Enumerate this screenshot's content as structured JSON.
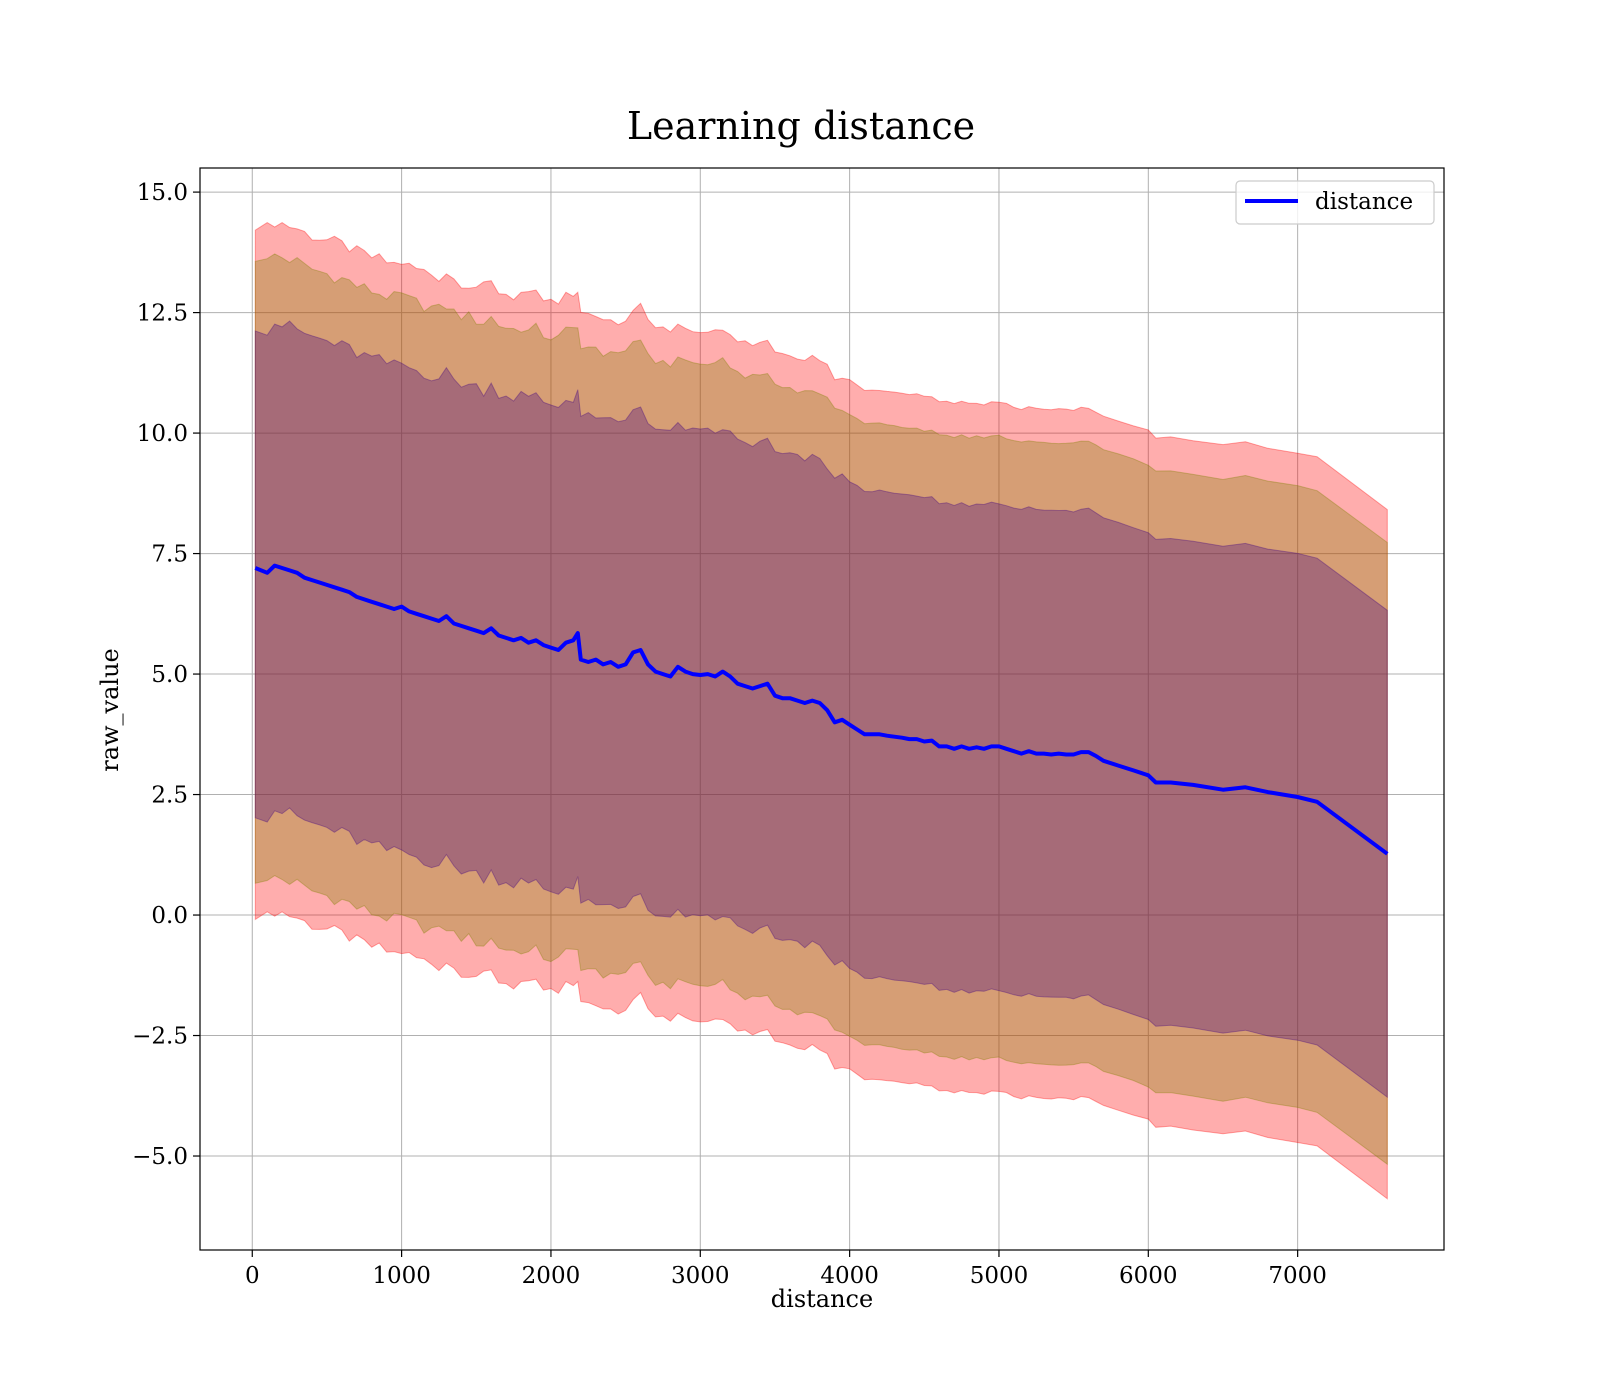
{
  "chart_data": {
    "type": "line",
    "title": "Learning distance",
    "xlabel": "distance",
    "ylabel": "raw_value",
    "xlim": [
      -350,
      7980
    ],
    "ylim": [
      -6.95,
      15.5
    ],
    "grid": true,
    "legend": {
      "placement": "top-right",
      "entries": [
        "distance"
      ]
    },
    "x_ticks": [
      "0",
      "1000",
      "2000",
      "3000",
      "4000",
      "5000",
      "6000",
      "7000"
    ],
    "x_tick_values": [
      0,
      1000,
      2000,
      3000,
      4000,
      5000,
      6000,
      7000
    ],
    "y_ticks": [
      "15.0",
      "12.5",
      "10.0",
      "7.5",
      "5.0",
      "2.5",
      "0.0",
      "−2.5",
      "−5.0"
    ],
    "y_tick_values": [
      15,
      12.5,
      10,
      7.5,
      5,
      2.5,
      0,
      -2.5,
      -5
    ],
    "series": [
      {
        "name": "distance",
        "color": "#0000ff",
        "x": [
          20,
          100,
          150,
          200,
          250,
          300,
          350,
          400,
          450,
          500,
          550,
          600,
          650,
          700,
          750,
          800,
          850,
          900,
          950,
          1000,
          1050,
          1100,
          1150,
          1200,
          1250,
          1300,
          1350,
          1400,
          1450,
          1500,
          1550,
          1600,
          1650,
          1700,
          1750,
          1800,
          1850,
          1900,
          1950,
          2000,
          2050,
          2100,
          2150,
          2180,
          2200,
          2250,
          2300,
          2350,
          2400,
          2450,
          2500,
          2550,
          2600,
          2650,
          2700,
          2750,
          2800,
          2850,
          2900,
          2950,
          3000,
          3050,
          3100,
          3150,
          3200,
          3250,
          3300,
          3350,
          3400,
          3450,
          3500,
          3550,
          3600,
          3650,
          3700,
          3750,
          3800,
          3850,
          3900,
          3950,
          4000,
          4050,
          4100,
          4150,
          4200,
          4250,
          4300,
          4350,
          4400,
          4450,
          4500,
          4550,
          4600,
          4650,
          4700,
          4750,
          4800,
          4850,
          4900,
          4950,
          5000,
          5050,
          5100,
          5150,
          5200,
          5250,
          5300,
          5350,
          5400,
          5450,
          5500,
          5550,
          5600,
          5650,
          5700,
          5800,
          5900,
          6000,
          6050,
          6150,
          6300,
          6500,
          6650,
          6800,
          7000,
          7130,
          7600
        ],
        "values": [
          7.2,
          7.1,
          7.25,
          7.2,
          7.15,
          7.1,
          7.0,
          6.95,
          6.9,
          6.85,
          6.8,
          6.75,
          6.7,
          6.6,
          6.55,
          6.5,
          6.45,
          6.4,
          6.35,
          6.4,
          6.3,
          6.25,
          6.2,
          6.15,
          6.1,
          6.2,
          6.05,
          6.0,
          5.95,
          5.9,
          5.85,
          5.95,
          5.8,
          5.75,
          5.7,
          5.75,
          5.65,
          5.7,
          5.6,
          5.55,
          5.5,
          5.65,
          5.7,
          5.85,
          5.3,
          5.25,
          5.3,
          5.2,
          5.25,
          5.15,
          5.2,
          5.45,
          5.5,
          5.2,
          5.05,
          5.0,
          4.95,
          5.15,
          5.05,
          5.0,
          4.98,
          5.0,
          4.95,
          5.05,
          4.95,
          4.8,
          4.75,
          4.7,
          4.75,
          4.8,
          4.55,
          4.5,
          4.5,
          4.45,
          4.4,
          4.45,
          4.4,
          4.25,
          4.0,
          4.05,
          3.95,
          3.85,
          3.75,
          3.75,
          3.75,
          3.72,
          3.7,
          3.68,
          3.65,
          3.65,
          3.6,
          3.62,
          3.5,
          3.5,
          3.45,
          3.5,
          3.45,
          3.48,
          3.45,
          3.5,
          3.5,
          3.45,
          3.4,
          3.35,
          3.4,
          3.35,
          3.35,
          3.33,
          3.35,
          3.33,
          3.33,
          3.38,
          3.38,
          3.3,
          3.2,
          3.1,
          3.0,
          2.9,
          2.75,
          2.75,
          2.7,
          2.6,
          2.65,
          2.55,
          2.45,
          2.35,
          1.27
        ]
      }
    ],
    "bands": [
      {
        "name": "band-outer",
        "color": "#ff0000",
        "opacity": 0.32,
        "half_width": 7.15
      },
      {
        "name": "band-middle",
        "color": "#808000",
        "opacity": 0.32,
        "half_width": 6.45
      },
      {
        "name": "band-inner",
        "color": "#400080",
        "opacity": 0.32,
        "half_width": 5.05
      }
    ]
  }
}
